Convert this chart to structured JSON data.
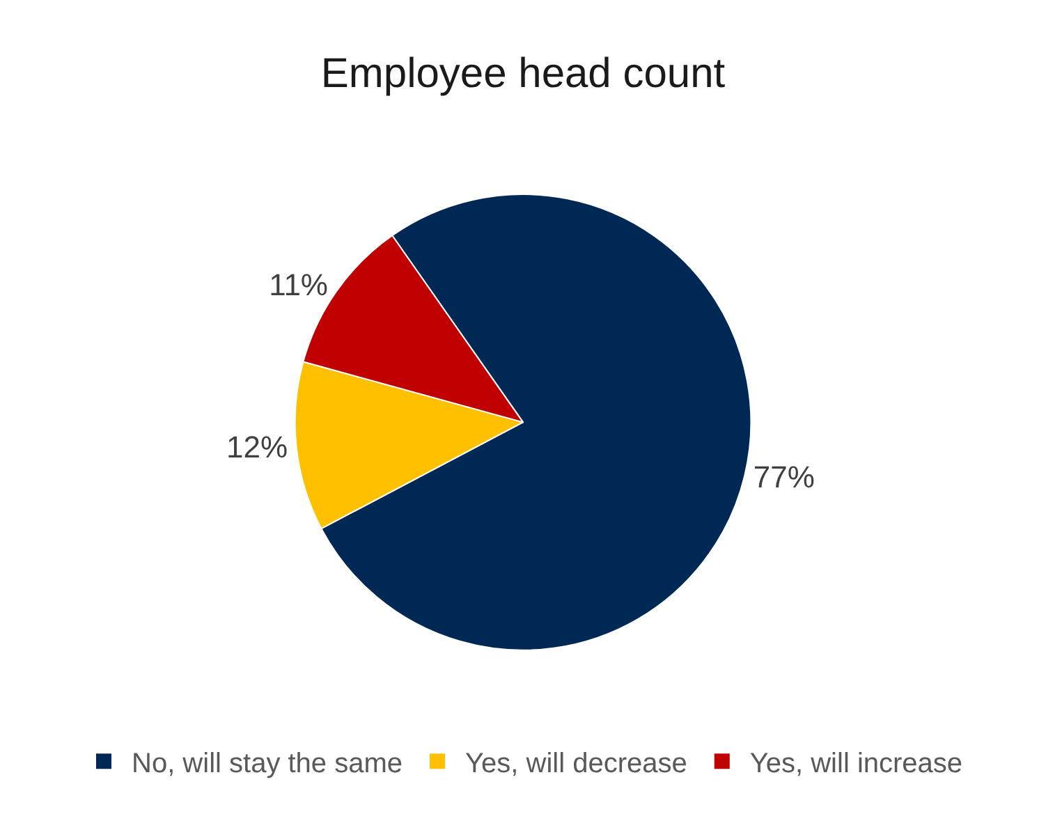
{
  "chart_data": {
    "type": "pie",
    "title": "Employee head count",
    "categories": [
      "No, will stay the same",
      "Yes, will decrease",
      "Yes, will increase"
    ],
    "values": [
      77,
      12,
      11
    ],
    "colors": [
      "#002855",
      "#ffc000",
      "#c00000"
    ],
    "value_labels": [
      "77%",
      "12%",
      "11%"
    ],
    "legend": "bottom"
  }
}
